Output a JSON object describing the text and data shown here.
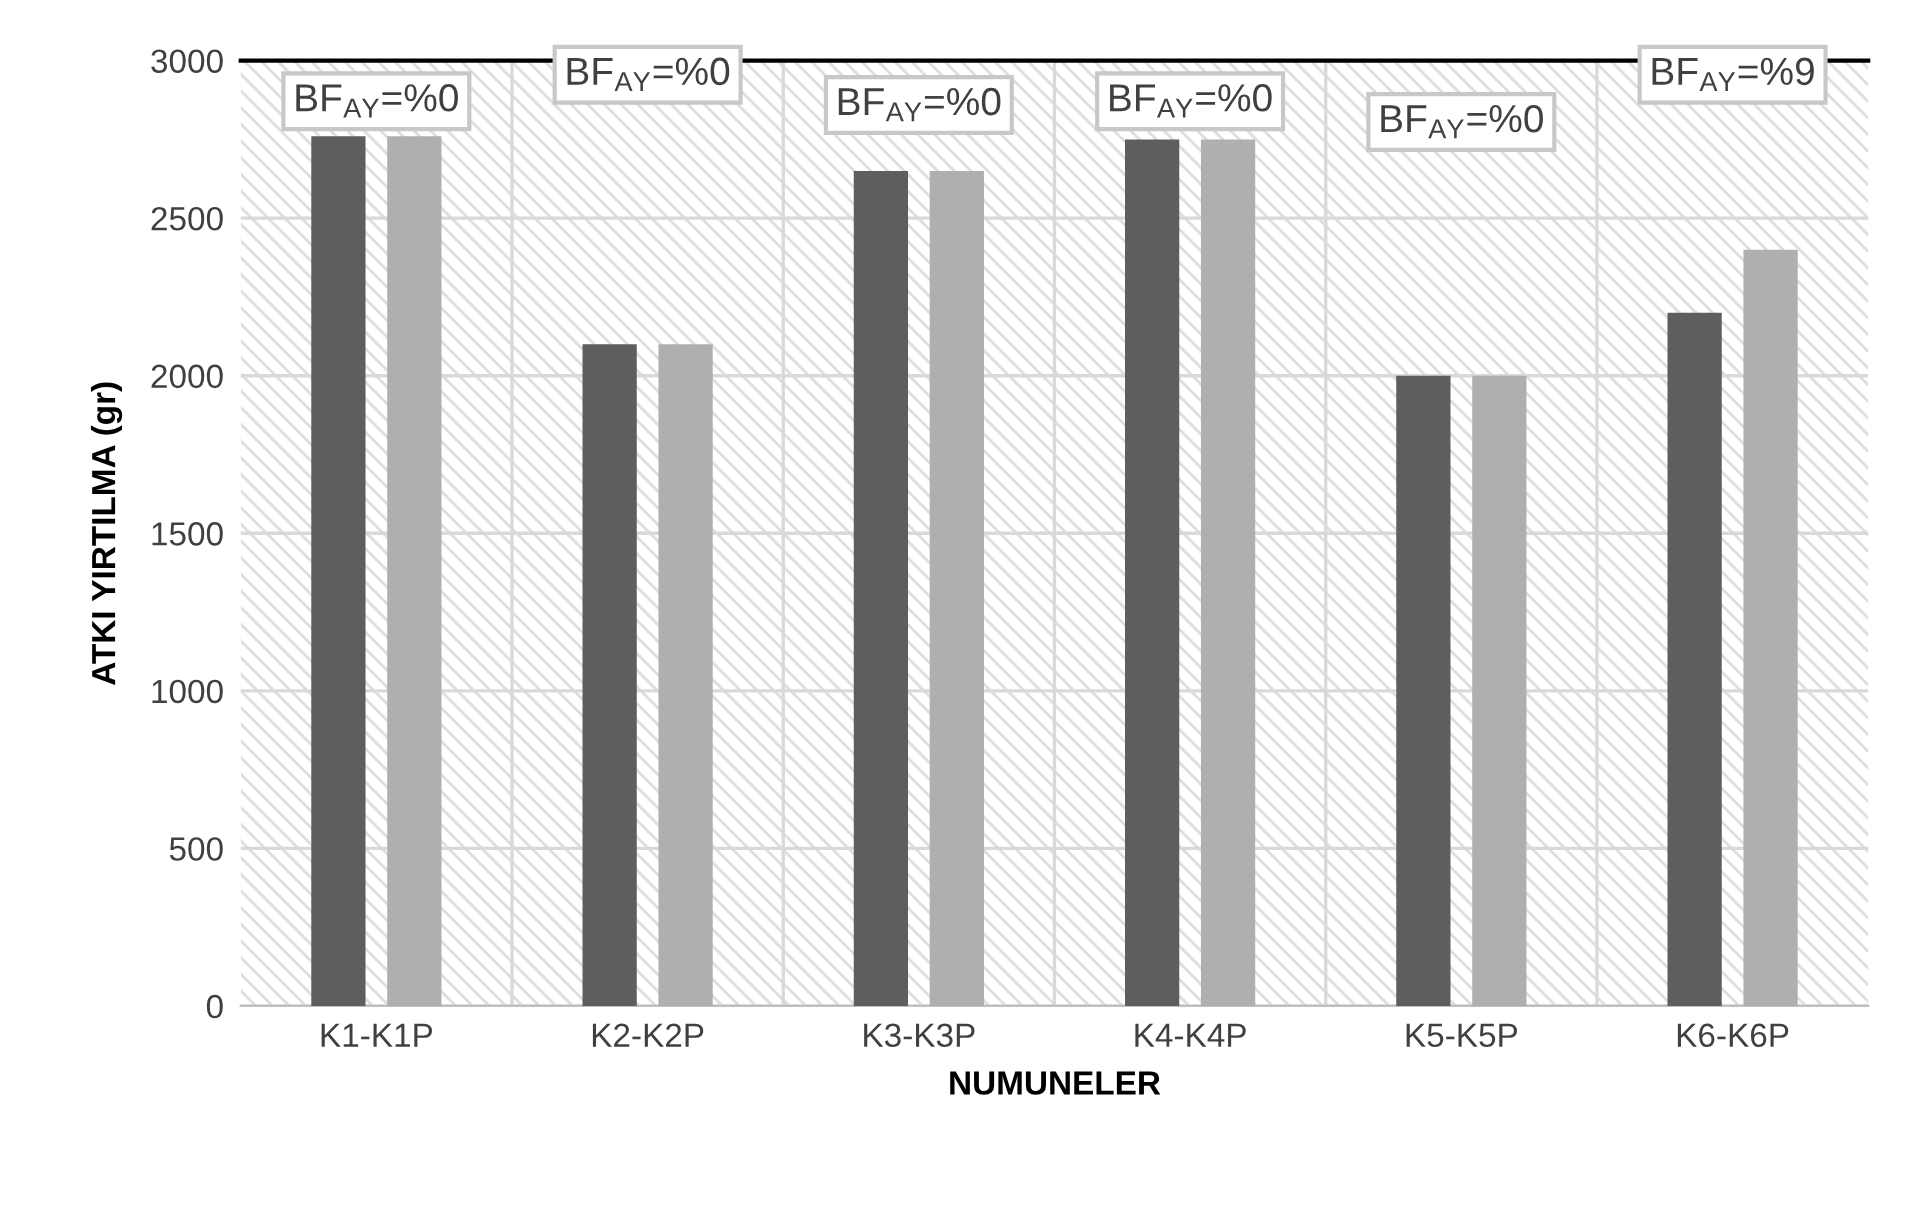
{
  "chart_data": {
    "type": "bar",
    "xlabel": "NUMUNELER",
    "ylabel": "ATKI YIRTILMA (gr)",
    "categories": [
      "K1-K1P",
      "K2-K2P",
      "K3-K3P",
      "K4-K4P",
      "K5-K5P",
      "K6-K6P"
    ],
    "series": [
      {
        "color": "#5e5e5e",
        "values": [
          2760,
          2100,
          2650,
          2750,
          2000,
          2200
        ]
      },
      {
        "color": "#afafaf",
        "values": [
          2760,
          2100,
          2650,
          2750,
          2000,
          2400
        ]
      }
    ],
    "ylim": [
      0,
      3000
    ],
    "yticks": [
      0,
      500,
      1000,
      1500,
      2000,
      2500,
      3000
    ],
    "grid": true,
    "annotations": [
      "BF$_{AY}$=%0",
      "BF$_{AY}$=%0",
      "BF$_{AY}$=%0",
      "BF$_{AY}$=%0",
      "BF$_{AY}$=%0",
      "BF$_{AY}$=%9"
    ]
  }
}
